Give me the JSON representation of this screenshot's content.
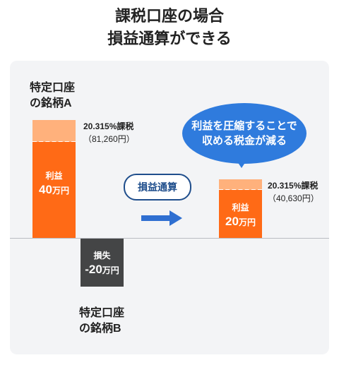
{
  "title": {
    "line1": "課税口座の場合",
    "line2": "損益通算ができる"
  },
  "account_a": {
    "label_line1": "特定口座",
    "label_line2": "の銘柄A",
    "tax_rate": "20.315%課税",
    "tax_amount": "（81,260円）",
    "profit_label": "利益",
    "profit_value": "40",
    "profit_unit": "万円"
  },
  "account_b": {
    "label_line1": "特定口座",
    "label_line2": "の銘柄B",
    "loss_label": "損失",
    "loss_value": "-20",
    "loss_unit": "万円"
  },
  "offset": {
    "pill_label": "損益通算"
  },
  "result": {
    "bubble_line1": "利益を圧縮することで",
    "bubble_line2": "収める税金が減る",
    "tax_rate": "20.315%課税",
    "tax_amount": "（40,630円）",
    "profit_label": "利益",
    "profit_value": "20",
    "profit_unit": "万円"
  },
  "colors": {
    "profit": "#ff6a16",
    "tax": "#ffb17c",
    "loss": "#444546",
    "accent_blue": "#2f7bdd",
    "pill_navy": "#1f4e8c"
  },
  "icons": [
    "arrow-right-icon"
  ]
}
